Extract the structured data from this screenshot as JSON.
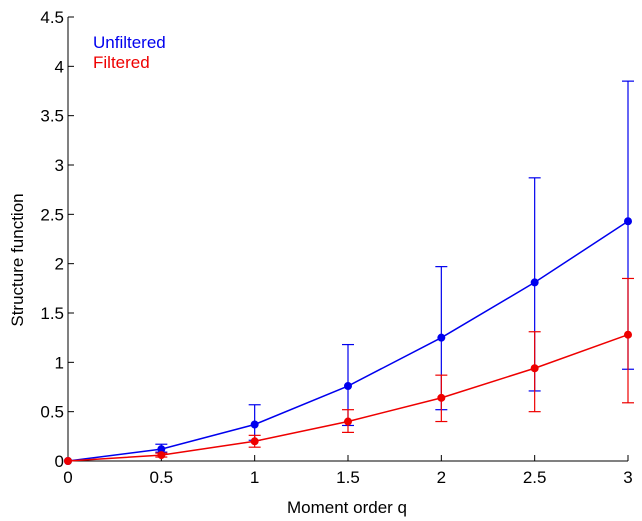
{
  "chart_data": {
    "type": "line",
    "title": "",
    "xlabel": "Moment order q",
    "ylabel": "Structure function",
    "xlim": [
      0,
      3
    ],
    "ylim": [
      0,
      4.5
    ],
    "xticks": [
      "0",
      "0.5",
      "1",
      "1.5",
      "2",
      "2.5",
      "3"
    ],
    "yticks": [
      "0",
      "0.5",
      "1",
      "1.5",
      "2",
      "2.5",
      "3",
      "3.5",
      "4",
      "4.5"
    ],
    "grid": false,
    "legend_position": "top-left",
    "x": [
      0,
      0.5,
      1,
      1.5,
      2,
      2.5,
      3
    ],
    "series": [
      {
        "name": "Unfiltered",
        "color": "#0000ee",
        "values": [
          0,
          0.12,
          0.37,
          0.76,
          1.25,
          1.81,
          2.43
        ],
        "err_low": [
          0,
          0.09,
          0.21,
          0.36,
          0.52,
          0.71,
          0.93
        ],
        "err_high": [
          0,
          0.17,
          0.57,
          1.18,
          1.97,
          2.87,
          3.85
        ]
      },
      {
        "name": "Filtered",
        "color": "#ee0000",
        "values": [
          0,
          0.06,
          0.2,
          0.4,
          0.64,
          0.94,
          1.28
        ],
        "err_low": [
          0,
          0.04,
          0.14,
          0.29,
          0.4,
          0.5,
          0.59
        ],
        "err_high": [
          0,
          0.08,
          0.26,
          0.52,
          0.87,
          1.31,
          1.85
        ]
      }
    ]
  }
}
